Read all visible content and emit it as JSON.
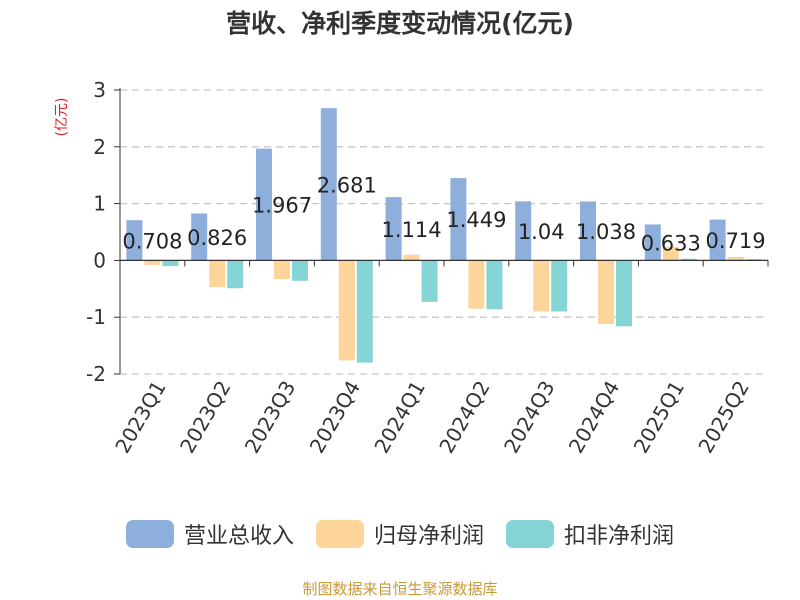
{
  "chart_data": {
    "type": "bar",
    "title": "营收、净利季度变动情况(亿元)",
    "ylabel": "(亿元)",
    "ylim": [
      -2,
      3
    ],
    "yticks": [
      3,
      2,
      1,
      0,
      -1,
      -2
    ],
    "grid": true,
    "legend_position": "bottom",
    "categories": [
      "2023Q1",
      "2023Q2",
      "2023Q3",
      "2023Q4",
      "2024Q1",
      "2024Q2",
      "2024Q3",
      "2024Q4",
      "2025Q1",
      "2025Q2"
    ],
    "series": [
      {
        "name": "营业总收入",
        "color": "#8eaedb",
        "values": [
          0.708,
          0.826,
          1.967,
          2.681,
          1.114,
          1.449,
          1.04,
          1.038,
          0.633,
          0.719
        ],
        "labels": [
          "0.708",
          "0.826",
          "1.967",
          "2.681",
          "1.114",
          "1.449",
          "1.04",
          "1.038",
          "0.633",
          "0.719"
        ]
      },
      {
        "name": "归母净利润",
        "color": "#fdd59a",
        "values": [
          -0.08,
          -0.47,
          -0.33,
          -1.76,
          0.1,
          -0.85,
          -0.9,
          -1.12,
          0.24,
          0.06
        ]
      },
      {
        "name": "扣非净利润",
        "color": "#85d5d6",
        "values": [
          -0.1,
          -0.49,
          -0.36,
          -1.8,
          -0.73,
          -0.86,
          -0.9,
          -1.16,
          0.03,
          0.02
        ]
      }
    ]
  },
  "footer": {
    "source": "制图数据来自恒生聚源数据库"
  }
}
